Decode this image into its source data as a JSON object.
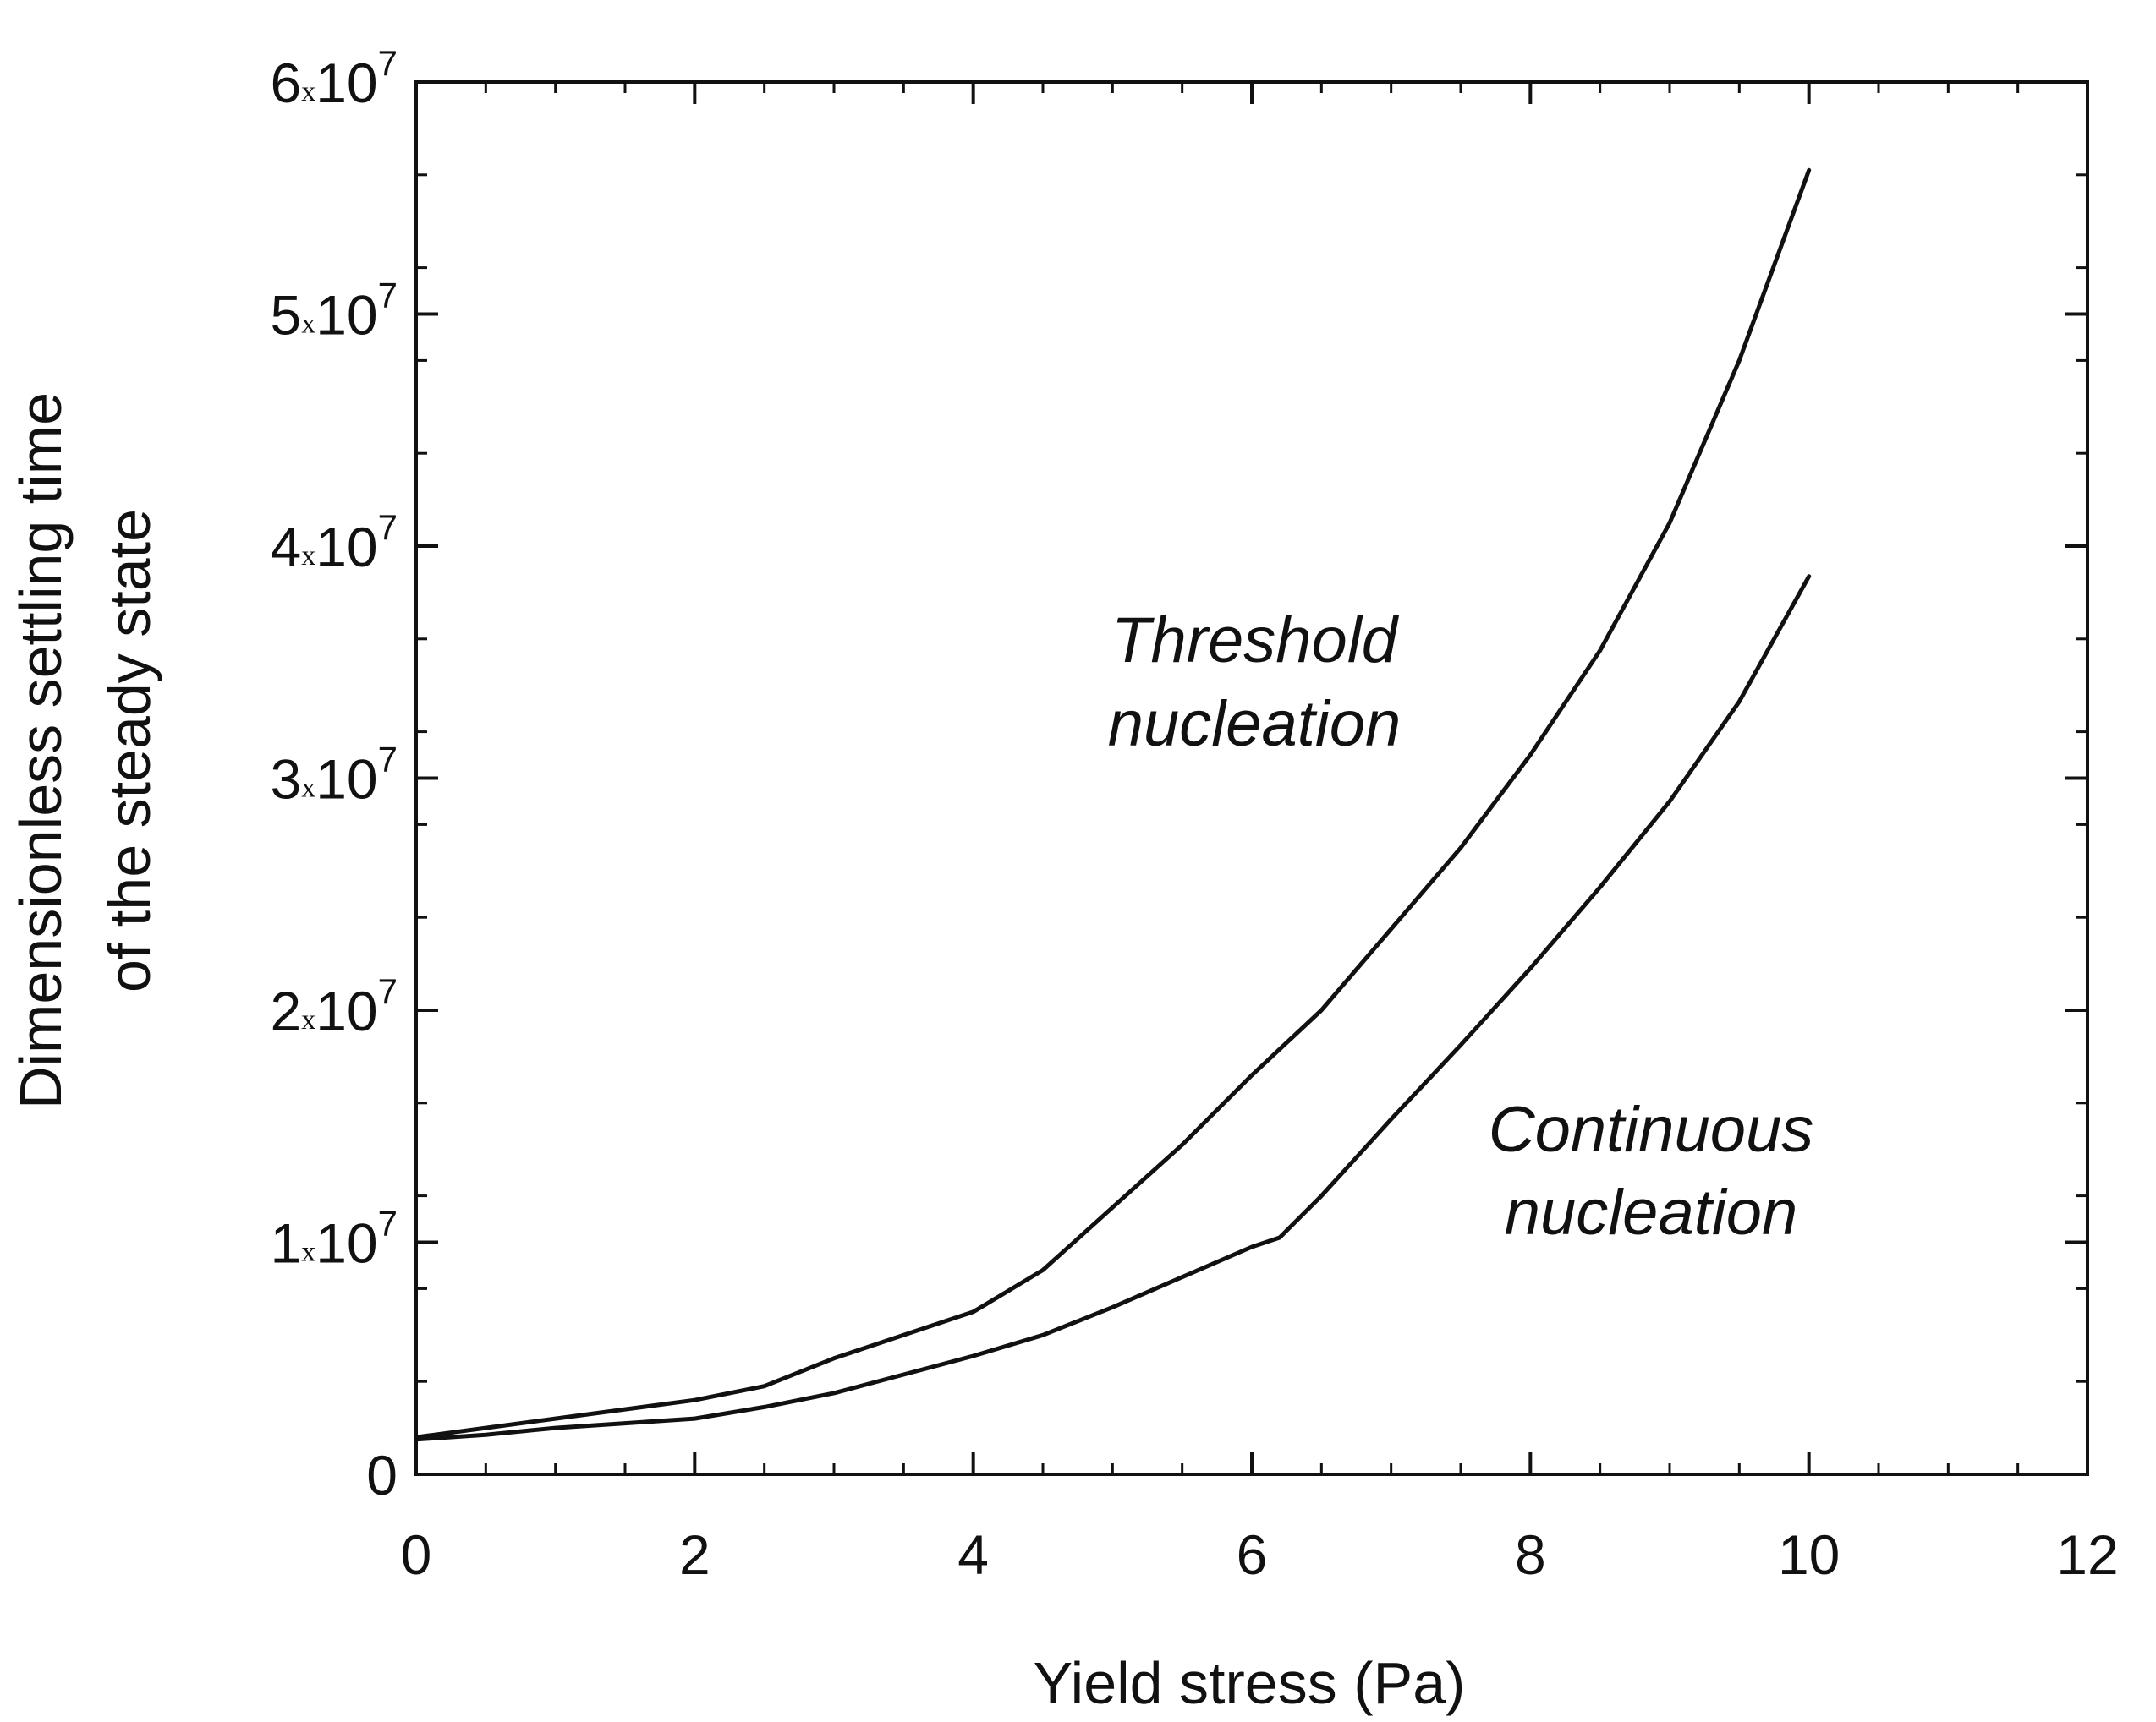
{
  "chart_data": {
    "type": "line",
    "xlabel": "Yield stress (Pa)",
    "ylabel": [
      "Dimensionless settling time",
      "of the steady state"
    ],
    "xlim": [
      0,
      12
    ],
    "ylim": [
      0,
      60000000
    ],
    "xticks": [
      {
        "value": 0,
        "label": "0"
      },
      {
        "value": 2,
        "label": "2"
      },
      {
        "value": 4,
        "label": "4"
      },
      {
        "value": 6,
        "label": "6"
      },
      {
        "value": 8,
        "label": "8"
      },
      {
        "value": 10,
        "label": "10"
      },
      {
        "value": 12,
        "label": "12"
      }
    ],
    "yticks": [
      {
        "value": 0,
        "label": "0",
        "mantissa": "",
        "times": "",
        "base": "",
        "exponent": ""
      },
      {
        "value": 10000000,
        "label": "1x10^7",
        "mantissa": "1",
        "times": "x",
        "base": "10",
        "exponent": "7"
      },
      {
        "value": 20000000,
        "label": "2x10^7",
        "mantissa": "2",
        "times": "x",
        "base": "10",
        "exponent": "7"
      },
      {
        "value": 30000000,
        "label": "3x10^7",
        "mantissa": "3",
        "times": "x",
        "base": "10",
        "exponent": "7"
      },
      {
        "value": 40000000,
        "label": "4x10^7",
        "mantissa": "4",
        "times": "x",
        "base": "10",
        "exponent": "7"
      },
      {
        "value": 50000000,
        "label": "5x10^7",
        "mantissa": "5",
        "times": "x",
        "base": "10",
        "exponent": "7"
      },
      {
        "value": 60000000,
        "label": "6x10^7",
        "mantissa": "6",
        "times": "x",
        "base": "10",
        "exponent": "7"
      }
    ],
    "x_minor_step": 0.5,
    "y_minor_step": 4000000,
    "grid": false,
    "series": [
      {
        "name": "Threshold nucleation",
        "color": "#111111",
        "x": [
          0,
          0.5,
          1,
          1.5,
          2,
          2.5,
          3,
          3.5,
          4,
          4.5,
          5,
          5.5,
          6,
          6.5,
          7,
          7.5,
          8,
          8.5,
          9,
          9.5,
          10
        ],
        "y": [
          1600000,
          2000000,
          2400000,
          2800000,
          3200000,
          3800000,
          5000000,
          6000000,
          7000000,
          8800000,
          11500000,
          14200000,
          17200000,
          20000000,
          23500000,
          27000000,
          31000000,
          35500000,
          41000000,
          48000000,
          56200000
        ]
      },
      {
        "name": "Continuous nucleation",
        "color": "#111111",
        "x": [
          0,
          0.5,
          1,
          1.5,
          2,
          2.5,
          3,
          3.5,
          4,
          4.5,
          5,
          5.5,
          6,
          6.2,
          6.5,
          7,
          7.5,
          8,
          8.5,
          9,
          9.5,
          10
        ],
        "y": [
          1500000,
          1700000,
          2000000,
          2200000,
          2400000,
          2900000,
          3500000,
          4300000,
          5100000,
          6000000,
          7200000,
          8500000,
          9800000,
          10200000,
          12000000,
          15300000,
          18500000,
          21800000,
          25300000,
          29000000,
          33300000,
          38700000
        ]
      }
    ],
    "annotations": [
      {
        "series": "Threshold nucleation",
        "lines": [
          "Threshold",
          "nucleation"
        ]
      },
      {
        "series": "Continuous nucleation",
        "lines": [
          "Continuous",
          "nucleation"
        ]
      }
    ]
  }
}
